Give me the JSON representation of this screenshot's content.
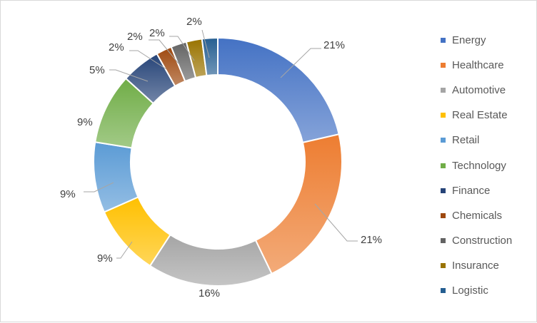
{
  "chart_data": {
    "type": "pie",
    "title": "",
    "categories": [
      "Energy",
      "Healthcare",
      "Automotive",
      "Real Estate",
      "Retail",
      "Technology",
      "Finance",
      "Chemicals",
      "Construction",
      "Insurance",
      "Logistic"
    ],
    "values": [
      21,
      21,
      16,
      9,
      9,
      9,
      5,
      2,
      2,
      2,
      2
    ],
    "data_labels": [
      "21%",
      "21%",
      "16%",
      "9%",
      "9%",
      "9%",
      "5%",
      "2%",
      "2%",
      "2%",
      "2%"
    ],
    "colors": [
      "#4472c4",
      "#ed7d31",
      "#a5a5a5",
      "#ffc000",
      "#5b9bd5",
      "#70ad47",
      "#264478",
      "#9e480e",
      "#636363",
      "#997300",
      "#255e91"
    ],
    "legend_position": "right",
    "style": "doughnut"
  }
}
